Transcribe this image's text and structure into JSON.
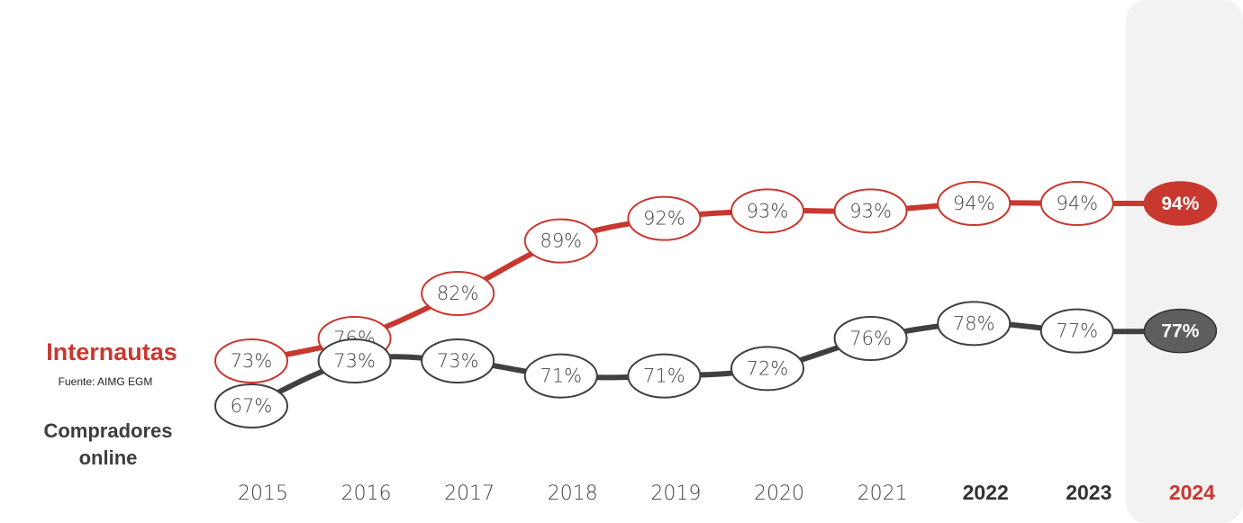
{
  "chart_data": {
    "type": "line",
    "x": [
      "2015",
      "2016",
      "2017",
      "2018",
      "2019",
      "2020",
      "2021",
      "2022",
      "2023",
      "2024"
    ],
    "bold_years": [
      "2022",
      "2023",
      "2024"
    ],
    "highlight_year": "2024",
    "ylim": [
      60,
      100
    ],
    "series": [
      {
        "name": "Internautas",
        "color": "#c8382f",
        "values": [
          73,
          76,
          82,
          89,
          92,
          93,
          93,
          94,
          94,
          94
        ],
        "labels": [
          "73%",
          "76%",
          "82%",
          "89%",
          "92%",
          "93%",
          "93%",
          "94%",
          "94%",
          "94%"
        ]
      },
      {
        "name": "Compradores online",
        "color": "#404040",
        "values": [
          67,
          73,
          73,
          71,
          71,
          72,
          76,
          78,
          77,
          77
        ],
        "labels": [
          "67%",
          "73%",
          "73%",
          "71%",
          "71%",
          "72%",
          "76%",
          "78%",
          "77%",
          "77%"
        ]
      }
    ],
    "legend_placement": "left",
    "source": "Fuente: AIMG EGM"
  },
  "legend": {
    "internautas": "Internautas",
    "compradores_line1": "Compradores",
    "compradores_line2": "online"
  },
  "colors": {
    "red": "#c8382f",
    "dark": "#404040",
    "highlight_bg": "#f2f2f2",
    "dark_fill": "#5e5e5e"
  }
}
